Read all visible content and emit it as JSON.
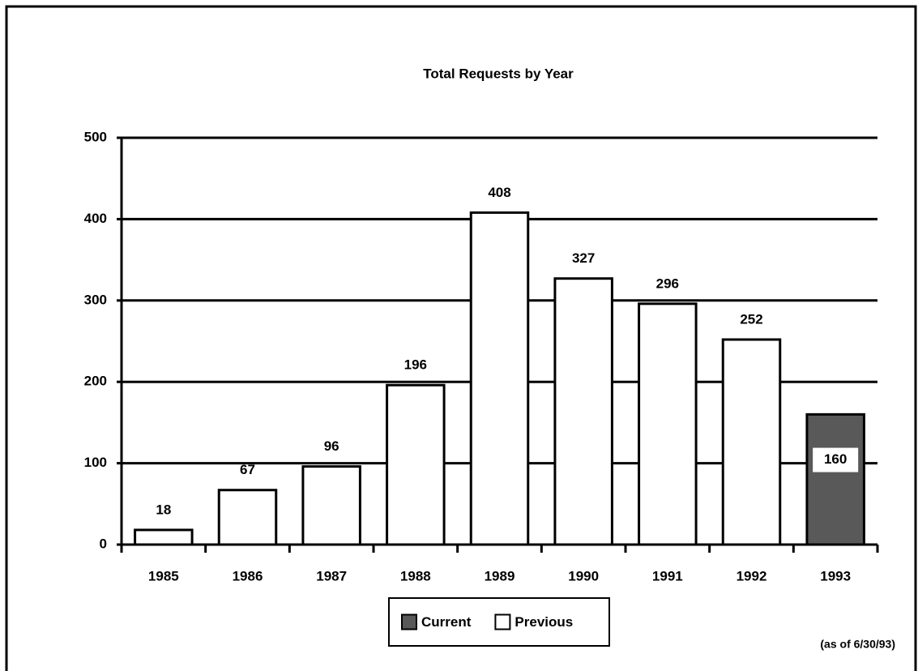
{
  "chart_data": {
    "type": "bar",
    "title": "Total Requests by Year",
    "categories": [
      "1985",
      "1986",
      "1987",
      "1988",
      "1989",
      "1990",
      "1991",
      "1992",
      "1993"
    ],
    "series": [
      {
        "name": "Current",
        "color": "#595959",
        "label_position": "inside",
        "values": [
          null,
          null,
          null,
          null,
          null,
          null,
          null,
          null,
          160
        ]
      },
      {
        "name": "Previous",
        "color": "#ffffff",
        "label_position": "above",
        "values": [
          18,
          67,
          96,
          196,
          408,
          327,
          296,
          252,
          null
        ]
      }
    ],
    "ylim": [
      0,
      500
    ],
    "yticks": [
      0,
      100,
      200,
      300,
      400,
      500
    ],
    "grid": true,
    "legend": "bottom",
    "annotation": "(as of 6/30/93)"
  }
}
